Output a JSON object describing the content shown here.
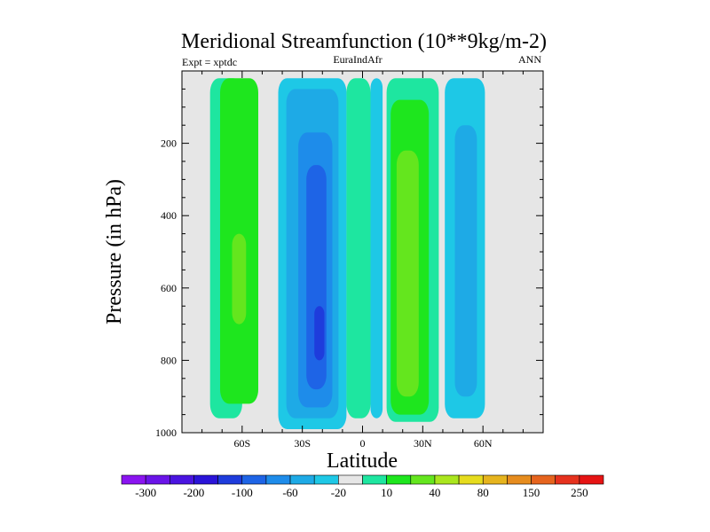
{
  "chart_data": {
    "type": "heatmap",
    "title": "Meridional Streamfunction (10**9kg/m-2)",
    "subtitle_left": "Expt = xptdc",
    "subtitle_center": "EuraIndAfr",
    "subtitle_right": "ANN",
    "xlabel": "Latitude",
    "ylabel": "Pressure (in hPa)",
    "xlim": [
      -90,
      90
    ],
    "ylim": [
      0,
      1000
    ],
    "y_reversed": true,
    "x_ticks": [
      {
        "value": -60,
        "label": "60S"
      },
      {
        "value": -30,
        "label": "30S"
      },
      {
        "value": 0,
        "label": "0"
      },
      {
        "value": 30,
        "label": "30N"
      },
      {
        "value": 60,
        "label": "60N"
      }
    ],
    "y_ticks": [
      {
        "value": 200,
        "label": "200"
      },
      {
        "value": 400,
        "label": "400"
      },
      {
        "value": 600,
        "label": "600"
      },
      {
        "value": 800,
        "label": "800"
      },
      {
        "value": 1000,
        "label": "1000"
      }
    ],
    "colorbar": {
      "colors": [
        "#8a14f0",
        "#6a14e8",
        "#4a14e0",
        "#2a14d8",
        "#1e3cdc",
        "#1e64e6",
        "#1e8cea",
        "#1eaae6",
        "#1ec8e6",
        "#e6e6e6",
        "#1ee6a0",
        "#1ee61e",
        "#64e61e",
        "#aae61e",
        "#e6dc1e",
        "#e6b41e",
        "#e68c1e",
        "#e6641e",
        "#e6321e",
        "#e61414"
      ],
      "labels": [
        "-300",
        "-200",
        "-100",
        "-60",
        "-20",
        "10",
        "40",
        "80",
        "150",
        "250"
      ],
      "placement": "bottom"
    },
    "cells": [
      {
        "lat": -90,
        "lat_end": -75,
        "p_top": 20,
        "p_bottom": 1000,
        "value": 0,
        "color_index": 9
      },
      {
        "lat": -76,
        "lat_end": -60,
        "p_top": 20,
        "p_bottom": 960,
        "value": 15,
        "color_index": 10
      },
      {
        "lat": -71,
        "lat_end": -52,
        "p_top": 20,
        "p_bottom": 920,
        "value": 35,
        "color_index": 11
      },
      {
        "lat": -65,
        "lat_end": -58,
        "p_top": 450,
        "p_bottom": 700,
        "value": 60,
        "color_index": 12
      },
      {
        "lat": -42,
        "lat_end": -8,
        "p_top": 20,
        "p_bottom": 990,
        "value": -15,
        "color_index": 8
      },
      {
        "lat": -38,
        "lat_end": -12,
        "p_top": 50,
        "p_bottom": 960,
        "value": -25,
        "color_index": 7
      },
      {
        "lat": -32,
        "lat_end": -15,
        "p_top": 170,
        "p_bottom": 930,
        "value": -50,
        "color_index": 6
      },
      {
        "lat": -28,
        "lat_end": -18,
        "p_top": 260,
        "p_bottom": 880,
        "value": -80,
        "color_index": 5
      },
      {
        "lat": -24,
        "lat_end": -19,
        "p_top": 650,
        "p_bottom": 800,
        "value": -110,
        "color_index": 4
      },
      {
        "lat": -8,
        "lat_end": 4,
        "p_top": 20,
        "p_bottom": 960,
        "value": 15,
        "color_index": 10
      },
      {
        "lat": 4,
        "lat_end": 10,
        "p_top": 20,
        "p_bottom": 960,
        "value": -15,
        "color_index": 8
      },
      {
        "lat": 12,
        "lat_end": 38,
        "p_top": 20,
        "p_bottom": 970,
        "value": 15,
        "color_index": 10
      },
      {
        "lat": 14,
        "lat_end": 33,
        "p_top": 80,
        "p_bottom": 950,
        "value": 35,
        "color_index": 11
      },
      {
        "lat": 17,
        "lat_end": 28,
        "p_top": 220,
        "p_bottom": 900,
        "value": 60,
        "color_index": 12
      },
      {
        "lat": 41,
        "lat_end": 61,
        "p_top": 20,
        "p_bottom": 960,
        "value": -15,
        "color_index": 8
      },
      {
        "lat": 46,
        "lat_end": 57,
        "p_top": 150,
        "p_bottom": 900,
        "value": -25,
        "color_index": 7
      }
    ]
  }
}
